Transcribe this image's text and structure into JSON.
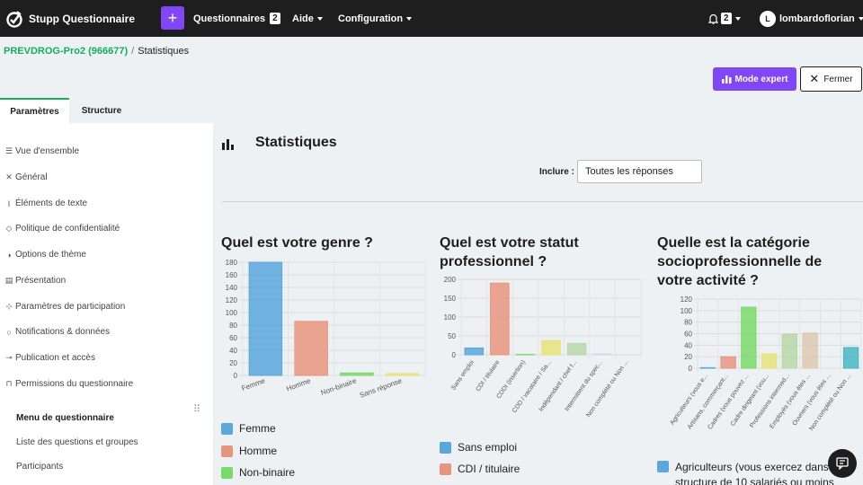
{
  "app": {
    "title": "Stupp Questionnaire"
  },
  "topnav": {
    "questionnaires_label": "Questionnaires",
    "questionnaires_count": "2",
    "aide_label": "Aide",
    "configuration_label": "Configuration",
    "notifications_count": "2",
    "avatar_initial": "L",
    "user_name": "lombardoflorian"
  },
  "breadcrumb": {
    "survey": "PREVDROG-Pro2 (966677)",
    "separator": "/",
    "current": "Statistiques"
  },
  "actions": {
    "expert_label": "Mode expert",
    "close_label": "Fermer"
  },
  "tabs": [
    {
      "label": "Paramètres"
    },
    {
      "label": "Structure"
    }
  ],
  "sidebar": {
    "items": [
      {
        "icon": "list-icon",
        "label": "Vue d'ensemble"
      },
      {
        "icon": "tools-icon",
        "label": "Général"
      },
      {
        "icon": "text-icon",
        "label": "Éléments de texte"
      },
      {
        "icon": "shield-icon",
        "label": "Politique de confidentialité"
      },
      {
        "icon": "palette-icon",
        "label": "Options de thème"
      },
      {
        "icon": "presentation-icon",
        "label": "Présentation"
      },
      {
        "icon": "participation-icon",
        "label": "Paramètres de participation"
      },
      {
        "icon": "bell-icon",
        "label": "Notifications & données"
      },
      {
        "icon": "key-icon",
        "label": "Publication et accès"
      },
      {
        "icon": "lock-icon",
        "label": "Permissions du questionnaire"
      }
    ],
    "menu_title": "Menu de questionnaire",
    "menu_items": [
      {
        "label": "Liste des questions et groupes"
      },
      {
        "label": "Participants"
      }
    ]
  },
  "main": {
    "title": "Statistiques",
    "include_label": "Inclure :",
    "include_value": "Toutes les réponses"
  },
  "questions": [
    {
      "title": "Quel est votre genre ?"
    },
    {
      "title_line1": "Quel est votre statut",
      "title_line2": "professionnel ?"
    },
    {
      "title_line1": "Quelle est la catégorie",
      "title_line2": "socioprofessionnelle de",
      "title_line3": "votre activité ?"
    }
  ],
  "legends": {
    "genre": [
      {
        "label": "Femme"
      },
      {
        "label": "Homme"
      },
      {
        "label": "Non-binaire"
      }
    ],
    "statut": [
      {
        "label": "Sans emploi"
      },
      {
        "label": "CDI / titulaire"
      }
    ],
    "categorie": [
      {
        "label_line1": "Agriculteurs (vous exercez dans u",
        "label_line2": "structure de 10 salariés ou moins"
      }
    ]
  },
  "chart_data": [
    {
      "type": "bar",
      "categories": [
        "Femme",
        "Homme",
        "Non-binaire",
        "Sans réponse"
      ],
      "values": [
        180,
        86,
        4,
        3
      ],
      "ylim": [
        0,
        180
      ],
      "yticks": [
        0,
        20,
        40,
        60,
        80,
        100,
        120,
        140,
        160,
        180
      ],
      "colors": [
        "#5aa7dd",
        "#e8957e",
        "#7ad96b",
        "#e6e47a"
      ],
      "grid": true
    },
    {
      "type": "bar",
      "categories": [
        "Sans emploi",
        "CDI / titulaire",
        "CDDI (insertion)",
        "CDD / vacataire / Sa...",
        "Indépendant / chef f...",
        "Intermittent du spec...",
        "Non complété ou Non ..."
      ],
      "values": [
        18,
        190,
        1,
        38,
        30,
        2,
        0
      ],
      "ylim": [
        0,
        200
      ],
      "yticks": [
        0,
        50,
        100,
        150,
        200
      ],
      "colors": [
        "#5aa7dd",
        "#e8957e",
        "#7ad96b",
        "#e6e47a",
        "#b8d7a8",
        "#c9d9e8",
        "#f4e1d8"
      ],
      "grid": true
    },
    {
      "type": "bar",
      "categories": [
        "Agriculteurs (vous e...",
        "Artisans, commerçant...",
        "Cadres (vous pouvez ...",
        "Cadre dirigeant (vou...",
        "Professions intermed...",
        "Employés (vous êtes ...",
        "Ouvriers (vous êtes ...",
        "Non complété ou Non ..."
      ],
      "values": [
        1,
        20,
        106,
        25,
        59,
        61,
        0,
        36
      ],
      "ylim": [
        0,
        120
      ],
      "yticks": [
        0,
        20,
        40,
        60,
        80,
        100,
        120
      ],
      "colors": [
        "#5aa7dd",
        "#e8957e",
        "#7ad96b",
        "#e6e47a",
        "#b8d7a8",
        "#dcc9b0",
        "#9ab7d6",
        "#49b6c4"
      ],
      "grid": true
    }
  ]
}
